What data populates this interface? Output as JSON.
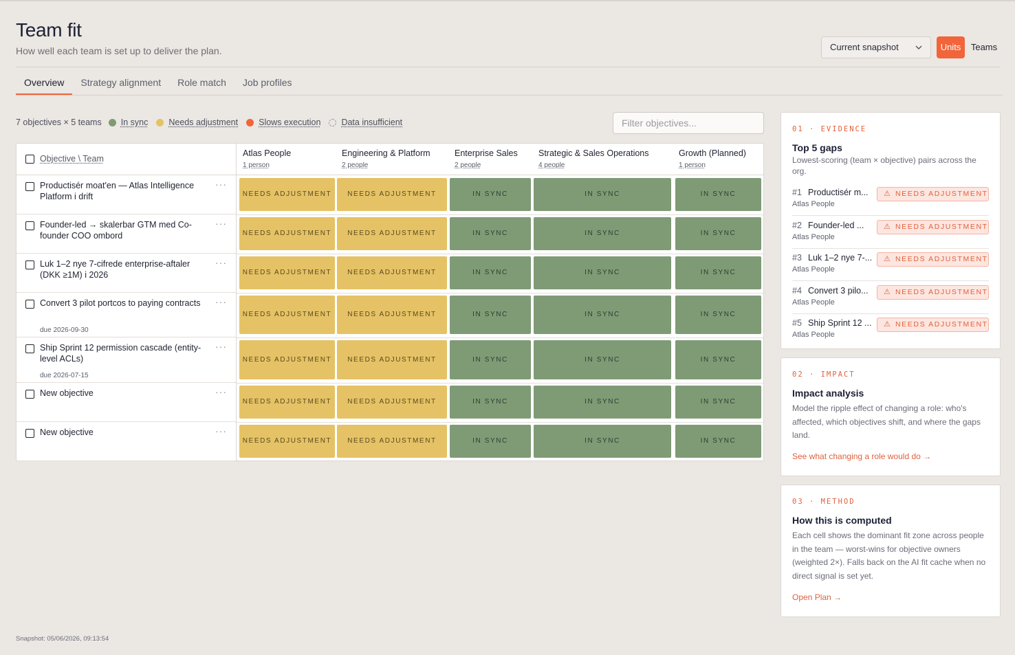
{
  "header": {
    "title": "Team fit",
    "subtitle": "How well each team is set up to deliver the plan.",
    "snapshot_select": "Current snapshot",
    "toggle_units": "Units",
    "toggle_teams": "Teams"
  },
  "tabs": [
    {
      "label": "Overview",
      "active": true
    },
    {
      "label": "Strategy alignment",
      "active": false
    },
    {
      "label": "Role match",
      "active": false
    },
    {
      "label": "Job profiles",
      "active": false
    }
  ],
  "legend": {
    "count": "7 objectives × 5 teams",
    "items": [
      {
        "label": "In sync",
        "color": "#7e9b76"
      },
      {
        "label": "Needs adjustment",
        "color": "#e5c265"
      },
      {
        "label": "Slows execution",
        "color": "#f2643a"
      },
      {
        "label": "Data insufficient",
        "color": "none"
      }
    ]
  },
  "filter": {
    "placeholder": "Filter objectives..."
  },
  "grid": {
    "corner_label": "Objective \\ Team",
    "teams": [
      {
        "name": "Atlas People",
        "people": "1 person"
      },
      {
        "name": "Engineering & Platform",
        "people": "2 people"
      },
      {
        "name": "Enterprise Sales",
        "people": "2 people"
      },
      {
        "name": "Strategic & Sales Operations",
        "people": "4 people"
      },
      {
        "name": "Growth (Planned)",
        "people": "1 person"
      }
    ],
    "objectives": [
      {
        "title": "Productisér moat'en — Atlas Intelligence Platform i drift",
        "due": "",
        "cells": [
          "NEEDS ADJUSTMENT",
          "NEEDS ADJUSTMENT",
          "IN SYNC",
          "IN SYNC",
          "IN SYNC"
        ]
      },
      {
        "title": "Founder-led → skalerbar GTM med Co-founder COO ombord",
        "due": "",
        "cells": [
          "NEEDS ADJUSTMENT",
          "NEEDS ADJUSTMENT",
          "IN SYNC",
          "IN SYNC",
          "IN SYNC"
        ]
      },
      {
        "title": "Luk 1–2 nye 7-cifrede enterprise-aftaler (DKK ≥1M) i 2026",
        "due": "",
        "cells": [
          "NEEDS ADJUSTMENT",
          "NEEDS ADJUSTMENT",
          "IN SYNC",
          "IN SYNC",
          "IN SYNC"
        ]
      },
      {
        "title": "Convert 3 pilot portcos to paying contracts",
        "due": "due 2026-09-30",
        "cells": [
          "NEEDS ADJUSTMENT",
          "NEEDS ADJUSTMENT",
          "IN SYNC",
          "IN SYNC",
          "IN SYNC"
        ]
      },
      {
        "title": "Ship Sprint 12 permission cascade (entity-level ACLs)",
        "due": "due 2026-07-15",
        "cells": [
          "NEEDS ADJUSTMENT",
          "NEEDS ADJUSTMENT",
          "IN SYNC",
          "IN SYNC",
          "IN SYNC"
        ]
      },
      {
        "title": "New objective",
        "due": "",
        "cells": [
          "NEEDS ADJUSTMENT",
          "NEEDS ADJUSTMENT",
          "IN SYNC",
          "IN SYNC",
          "IN SYNC"
        ]
      },
      {
        "title": "New objective",
        "due": "",
        "cells": [
          "NEEDS ADJUSTMENT",
          "NEEDS ADJUSTMENT",
          "IN SYNC",
          "IN SYNC",
          "IN SYNC"
        ]
      }
    ]
  },
  "evidence": {
    "kicker": "01 · EVIDENCE",
    "title": "Top 5 gaps",
    "text": "Lowest-scoring (team × objective) pairs across the org.",
    "gaps": [
      {
        "rank": "#1",
        "objective": "Productisér m...",
        "team": "Atlas People",
        "badge": "NEEDS ADJUSTMENT"
      },
      {
        "rank": "#2",
        "objective": "Founder-led ...",
        "team": "Atlas People",
        "badge": "NEEDS ADJUSTMENT"
      },
      {
        "rank": "#3",
        "objective": "Luk 1–2 nye 7-...",
        "team": "Atlas People",
        "badge": "NEEDS ADJUSTMENT"
      },
      {
        "rank": "#4",
        "objective": "Convert 3 pilo...",
        "team": "Atlas People",
        "badge": "NEEDS ADJUSTMENT"
      },
      {
        "rank": "#5",
        "objective": "Ship Sprint 12 ...",
        "team": "Atlas People",
        "badge": "NEEDS ADJUSTMENT"
      }
    ]
  },
  "impact": {
    "kicker": "02 · IMPACT",
    "title": "Impact analysis",
    "text": "Model the ripple effect of changing a role: who's affected, which objectives shift, and where the gaps land.",
    "link": "See what changing a role would do →"
  },
  "method": {
    "kicker": "03 · METHOD",
    "title": "How this is computed",
    "text": "Each cell shows the dominant fit zone across people in the team — worst-wins for objective owners (weighted 2×). Falls back on the AI fit cache when no direct signal is set yet.",
    "link": "Open Plan →"
  },
  "footer": "Snapshot: 05/06/2026, 09:13:54"
}
